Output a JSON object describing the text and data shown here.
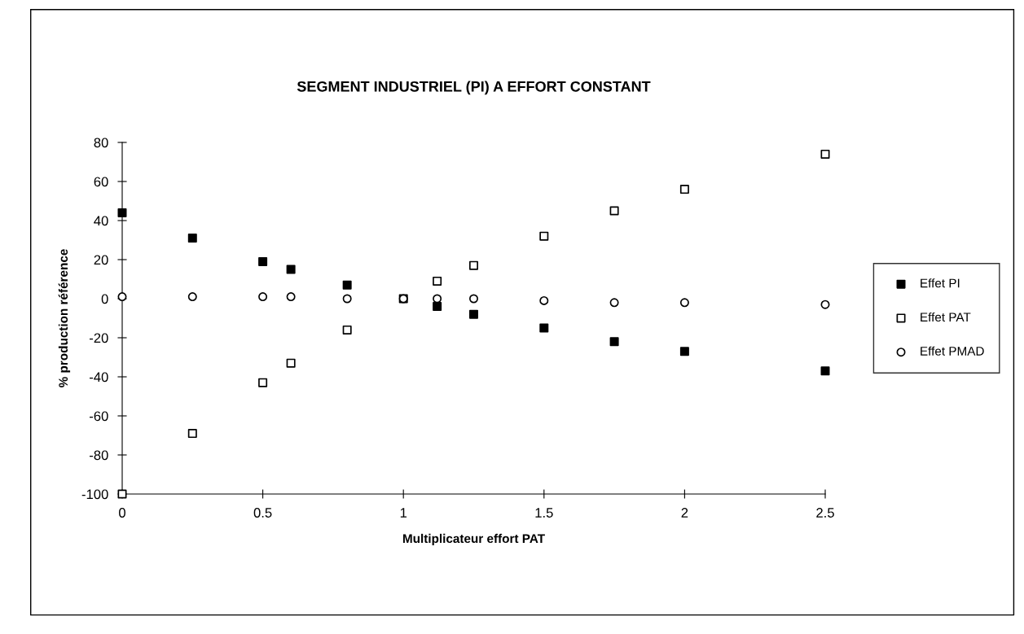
{
  "chart_data": {
    "type": "scatter",
    "title": "SEGMENT INDUSTRIEL (PI) A EFFORT CONSTANT",
    "xlabel": "Multiplicateur effort PAT",
    "ylabel": "% production référence",
    "x": [
      0,
      0.25,
      0.5,
      0.6,
      0.8,
      1,
      1.12,
      1.25,
      1.5,
      1.75,
      2,
      2.5
    ],
    "series": [
      {
        "name": "Effet PI",
        "color": "#000000",
        "marker": "square",
        "values": [
          44,
          31,
          19,
          15,
          7,
          null,
          -4,
          -8,
          -15,
          -22,
          -27,
          -37
        ]
      },
      {
        "name": "Effet PAT",
        "color": "#ffffff",
        "marker": "square",
        "values": [
          -100,
          -69,
          -43,
          -33,
          -16,
          0,
          9,
          17,
          32,
          45,
          56,
          74
        ]
      },
      {
        "name": "Effet PMAD",
        "color": "#ffffff",
        "marker": "circle",
        "values": [
          1,
          1,
          1,
          1,
          0,
          0,
          0,
          0,
          -1,
          -2,
          -2,
          -3
        ]
      }
    ],
    "xlim": [
      0,
      2.5
    ],
    "xticks": [
      0,
      0.5,
      1,
      1.5,
      2,
      2.5
    ],
    "ylim": [
      -100,
      80
    ],
    "yticks": [
      -100,
      -80,
      -60,
      -40,
      -20,
      0,
      20,
      40,
      60,
      80
    ],
    "grid": false,
    "legend": "right"
  }
}
